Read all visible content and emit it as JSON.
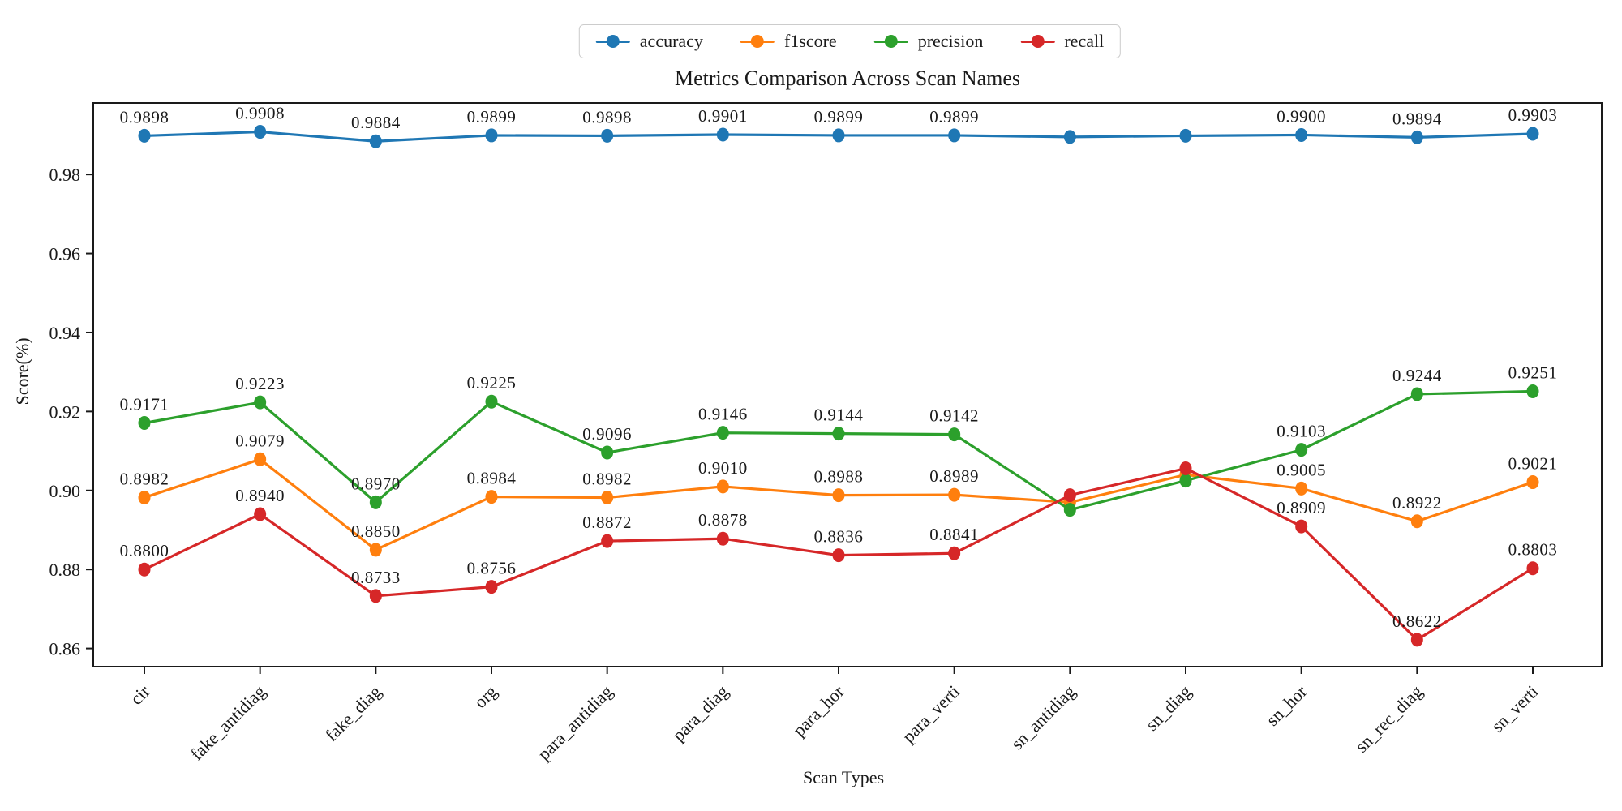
{
  "chart_data": {
    "type": "line",
    "title": "Metrics Comparison Across Scan Names",
    "xlabel": "Scan Types",
    "ylabel": "Score(%)",
    "grid": false,
    "legend_position": "top-center",
    "point_labels_shown": true,
    "categories": [
      "cir",
      "fake_antidiag",
      "fake_diag",
      "org",
      "para_antidiag",
      "para_diag",
      "para_hor",
      "para_verti",
      "sn_antidiag",
      "sn_diag",
      "sn_hor",
      "sn_rec_diag",
      "sn_verti"
    ],
    "y_ticks": [
      0.86,
      0.88,
      0.9,
      0.92,
      0.94,
      0.96,
      0.98
    ],
    "ylim": [
      0.8554,
      0.9981
    ],
    "series": [
      {
        "name": "accuracy",
        "color": "#1f77b4",
        "values": [
          0.9898,
          0.9908,
          0.9884,
          0.9899,
          0.9898,
          0.9901,
          0.9899,
          0.9899,
          0.9895,
          0.9898,
          0.99,
          0.9894,
          0.9903
        ],
        "labels": [
          "0.9898",
          "0.9908",
          "0.9884",
          "0.9899",
          "0.9898",
          "0.9901",
          "0.9899",
          "0.9899",
          null,
          null,
          "0.9900",
          "0.9894",
          "0.9903"
        ]
      },
      {
        "name": "f1score",
        "color": "#ff7f0e",
        "values": [
          0.8982,
          0.9079,
          0.885,
          0.8984,
          0.8982,
          0.901,
          0.8988,
          0.8989,
          0.897,
          0.904,
          0.9005,
          0.8922,
          0.9021
        ],
        "labels": [
          "0.8982",
          "0.9079",
          "0.8850",
          "0.8984",
          "0.8982",
          "0.9010",
          "0.8988",
          "0.8989",
          null,
          null,
          "0.9005",
          "0.8922",
          "0.9021"
        ]
      },
      {
        "name": "precision",
        "color": "#2ca02c",
        "values": [
          0.9171,
          0.9223,
          0.897,
          0.9225,
          0.9096,
          0.9146,
          0.9144,
          0.9142,
          0.8951,
          0.9025,
          0.9103,
          0.9244,
          0.9251
        ],
        "labels": [
          "0.9171",
          "0.9223",
          "0.8970",
          "0.9225",
          "0.9096",
          "0.9146",
          "0.9144",
          "0.9142",
          null,
          null,
          "0.9103",
          "0.9244",
          "0.9251"
        ]
      },
      {
        "name": "recall",
        "color": "#d62728",
        "values": [
          0.88,
          0.894,
          0.8733,
          0.8756,
          0.8872,
          0.8878,
          0.8836,
          0.8841,
          0.8988,
          0.9056,
          0.8909,
          0.8622,
          0.8803
        ],
        "labels": [
          "0.8800",
          "0.8940",
          "0.8733",
          "0.8756",
          "0.8872",
          "0.8878",
          "0.8836",
          "0.8841",
          null,
          null,
          "0.8909",
          "0.8622",
          "0.8803"
        ]
      }
    ]
  }
}
